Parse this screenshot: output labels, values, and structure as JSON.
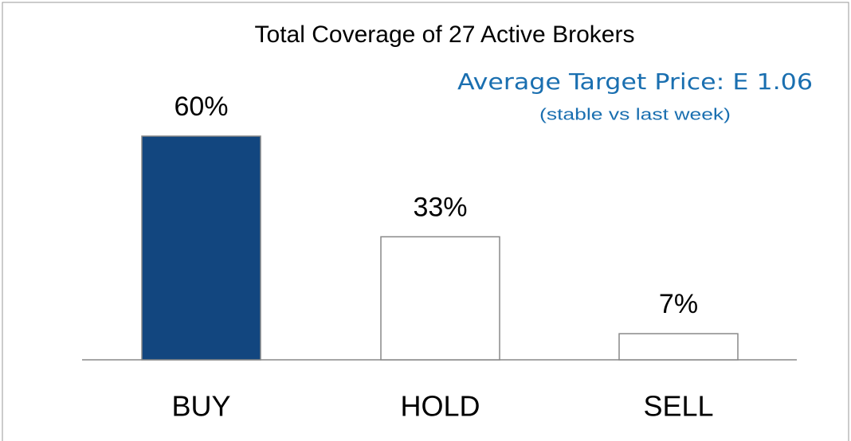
{
  "chart_data": {
    "type": "bar",
    "title": "Total Coverage of 27 Active Brokers",
    "annotations": [
      "Average Target Price: E 1.06",
      "(stable vs last week)"
    ],
    "categories": [
      "BUY",
      "HOLD",
      "SELL"
    ],
    "values": [
      60,
      33,
      7
    ],
    "value_labels": [
      "60%",
      "33%",
      "7%"
    ],
    "colors": [
      "#12467f",
      "#ffffff",
      "#ffffff"
    ]
  }
}
